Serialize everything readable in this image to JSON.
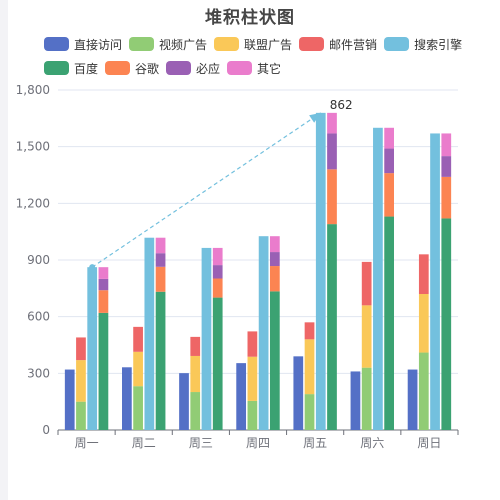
{
  "chart_data": {
    "type": "bar",
    "title": "堆积柱状图",
    "categories": [
      "周一",
      "周二",
      "周三",
      "周四",
      "周五",
      "周六",
      "周日"
    ],
    "ylim": [
      0,
      1800
    ],
    "yticks": [
      "0",
      "300",
      "600",
      "900",
      "1,200",
      "1,500",
      "1,800"
    ],
    "grid": true,
    "legend_position": "top",
    "series": [
      {
        "name": "直接访问",
        "stack": "a",
        "color": "#5470c6",
        "values": [
          320,
          332,
          301,
          354,
          390,
          310,
          320
        ]
      },
      {
        "name": "视频广告",
        "stack": "b",
        "color": "#91cc75",
        "values": [
          150,
          232,
          201,
          154,
          190,
          330,
          410
        ]
      },
      {
        "name": "联盟广告",
        "stack": "b",
        "color": "#fac858",
        "values": [
          220,
          182,
          191,
          234,
          290,
          330,
          310
        ]
      },
      {
        "name": "邮件营销",
        "stack": "b",
        "color": "#ee6666",
        "values": [
          120,
          132,
          101,
          134,
          90,
          230,
          210
        ]
      },
      {
        "name": "搜索引擎",
        "stack": "c",
        "color": "#73c0de",
        "values": [
          862,
          1018,
          964,
          1026,
          1679,
          1600,
          1570
        ]
      },
      {
        "name": "百度",
        "stack": "d",
        "color": "#3ba272",
        "values": [
          620,
          732,
          701,
          734,
          1090,
          1130,
          1120
        ]
      },
      {
        "name": "谷歌",
        "stack": "d",
        "color": "#fc8452",
        "values": [
          120,
          132,
          101,
          134,
          290,
          230,
          220
        ]
      },
      {
        "name": "必应",
        "stack": "d",
        "color": "#9a60b4",
        "values": [
          60,
          72,
          71,
          74,
          190,
          130,
          110
        ]
      },
      {
        "name": "其它",
        "stack": "d",
        "color": "#ea7ccc",
        "values": [
          62,
          82,
          91,
          84,
          109,
          110,
          120
        ]
      }
    ],
    "annotation": {
      "label": "862",
      "from_category": "周一",
      "from_value": 862,
      "to_category": "周五",
      "to_value": 1679
    }
  }
}
